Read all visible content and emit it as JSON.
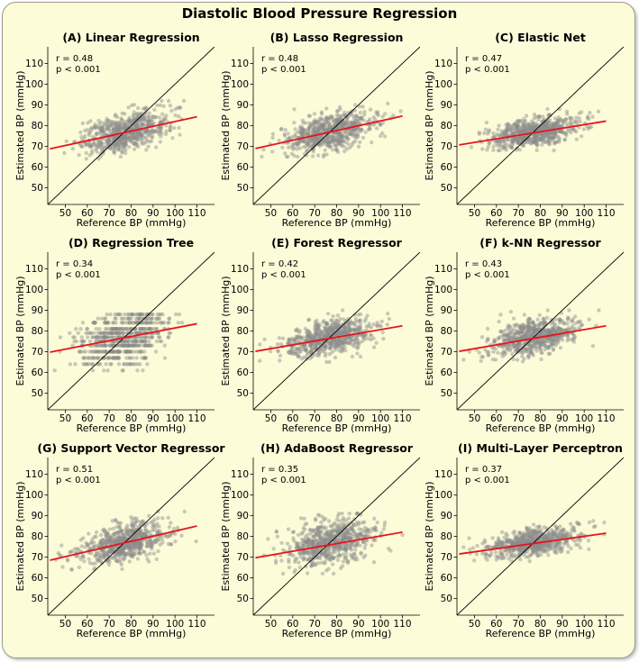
{
  "figure": {
    "title": "Diastolic Blood Pressure Regression"
  },
  "axes": {
    "xlabel": "Reference BP (mmHg)",
    "ylabel": "Estimated BP (mmHg)",
    "xticks": [
      50,
      60,
      70,
      80,
      90,
      100,
      110
    ],
    "yticks": [
      50,
      60,
      70,
      80,
      90,
      100,
      110
    ],
    "xlim": [
      42,
      118
    ],
    "ylim": [
      42,
      118
    ]
  },
  "colors": {
    "points": "#8c8c8c",
    "fit_line": "#e8141a",
    "identity_line": "#000000",
    "background": "#fcfcd9"
  },
  "chart_data": [
    {
      "type": "scatter",
      "title": "(A) Linear Regression",
      "r_text": "r = 0.48",
      "p_text": "p < 0.001",
      "fit_line": {
        "x": [
          43,
          110
        ],
        "y": [
          68.8,
          84.3
        ]
      },
      "identity_line": {
        "x": [
          42,
          118
        ],
        "y": [
          42,
          118
        ]
      },
      "point_cloud": {
        "x_range": [
          45,
          110
        ],
        "y_range": [
          64,
          92
        ],
        "x_center": 77,
        "y_center": 77,
        "slope": 0.23,
        "y_spread": 4.4
      }
    },
    {
      "type": "scatter",
      "title": "(B) Lasso Regression",
      "r_text": "r = 0.48",
      "p_text": "p < 0.001",
      "fit_line": {
        "x": [
          43,
          110
        ],
        "y": [
          69.0,
          84.6
        ]
      },
      "identity_line": {
        "x": [
          42,
          118
        ],
        "y": [
          42,
          118
        ]
      },
      "point_cloud": {
        "x_range": [
          45,
          110
        ],
        "y_range": [
          65,
          91
        ],
        "x_center": 77,
        "y_center": 77,
        "slope": 0.23,
        "y_spread": 4.4
      }
    },
    {
      "type": "scatter",
      "title": "(C) Elastic Net",
      "r_text": "r = 0.47",
      "p_text": "p < 0.001",
      "fit_line": {
        "x": [
          43,
          110
        ],
        "y": [
          70.7,
          82.2
        ]
      },
      "identity_line": {
        "x": [
          42,
          118
        ],
        "y": [
          42,
          118
        ]
      },
      "point_cloud": {
        "x_range": [
          45,
          110
        ],
        "y_range": [
          68,
          88
        ],
        "x_center": 77,
        "y_center": 77,
        "slope": 0.17,
        "y_spread": 3.4
      }
    },
    {
      "type": "scatter",
      "title": "(D) Regression Tree",
      "r_text": "r = 0.34",
      "p_text": "p < 0.001",
      "fit_line": {
        "x": [
          43,
          110
        ],
        "y": [
          69.8,
          83.5
        ]
      },
      "identity_line": {
        "x": [
          42,
          118
        ],
        "y": [
          42,
          118
        ]
      },
      "point_cloud": {
        "x_range": [
          45,
          110
        ],
        "y_range": [
          61,
          88
        ],
        "x_center": 77,
        "y_center": 77,
        "slope": 0.2,
        "y_spread": 6.5,
        "discrete_levels": [
          61,
          64,
          67,
          70,
          73,
          75,
          77,
          79,
          81,
          84,
          86,
          88
        ]
      }
    },
    {
      "type": "scatter",
      "title": "(E) Forest Regressor",
      "r_text": "r = 0.42",
      "p_text": "p < 0.001",
      "fit_line": {
        "x": [
          43,
          110
        ],
        "y": [
          70.2,
          82.5
        ]
      },
      "identity_line": {
        "x": [
          42,
          118
        ],
        "y": [
          42,
          118
        ]
      },
      "point_cloud": {
        "x_range": [
          45,
          110
        ],
        "y_range": [
          65,
          90
        ],
        "x_center": 77,
        "y_center": 77,
        "slope": 0.18,
        "y_spread": 4.0
      }
    },
    {
      "type": "scatter",
      "title": "(F) k-NN Regressor",
      "r_text": "r = 0.43",
      "p_text": "p < 0.001",
      "fit_line": {
        "x": [
          43,
          110
        ],
        "y": [
          70.2,
          82.5
        ]
      },
      "identity_line": {
        "x": [
          42,
          118
        ],
        "y": [
          42,
          118
        ]
      },
      "point_cloud": {
        "x_range": [
          45,
          110
        ],
        "y_range": [
          65,
          90
        ],
        "x_center": 77,
        "y_center": 77,
        "slope": 0.18,
        "y_spread": 4.0
      }
    },
    {
      "type": "scatter",
      "title": "(G) Support Vector Regressor",
      "r_text": "r = 0.51",
      "p_text": "p < 0.001",
      "fit_line": {
        "x": [
          43,
          110
        ],
        "y": [
          68.5,
          85.0
        ]
      },
      "identity_line": {
        "x": [
          42,
          118
        ],
        "y": [
          42,
          118
        ]
      },
      "point_cloud": {
        "x_range": [
          45,
          110
        ],
        "y_range": [
          64,
          92
        ],
        "x_center": 77,
        "y_center": 77,
        "slope": 0.25,
        "y_spread": 4.4
      }
    },
    {
      "type": "scatter",
      "title": "(H) AdaBoost Regressor",
      "r_text": "r = 0.35",
      "p_text": "p < 0.001",
      "fit_line": {
        "x": [
          43,
          110
        ],
        "y": [
          69.7,
          82.0
        ]
      },
      "identity_line": {
        "x": [
          42,
          118
        ],
        "y": [
          42,
          118
        ]
      },
      "point_cloud": {
        "x_range": [
          45,
          110
        ],
        "y_range": [
          62,
          91
        ],
        "x_center": 77,
        "y_center": 77,
        "slope": 0.18,
        "y_spread": 5.2
      }
    },
    {
      "type": "scatter",
      "title": "(I) Multi-Layer Perceptron",
      "r_text": "r = 0.37",
      "p_text": "p < 0.001",
      "fit_line": {
        "x": [
          43,
          110
        ],
        "y": [
          71.5,
          81.5
        ]
      },
      "identity_line": {
        "x": [
          42,
          118
        ],
        "y": [
          42,
          118
        ]
      },
      "point_cloud": {
        "x_range": [
          45,
          110
        ],
        "y_range": [
          68,
          88
        ],
        "x_center": 77,
        "y_center": 77,
        "slope": 0.15,
        "y_spread": 3.2
      }
    }
  ]
}
